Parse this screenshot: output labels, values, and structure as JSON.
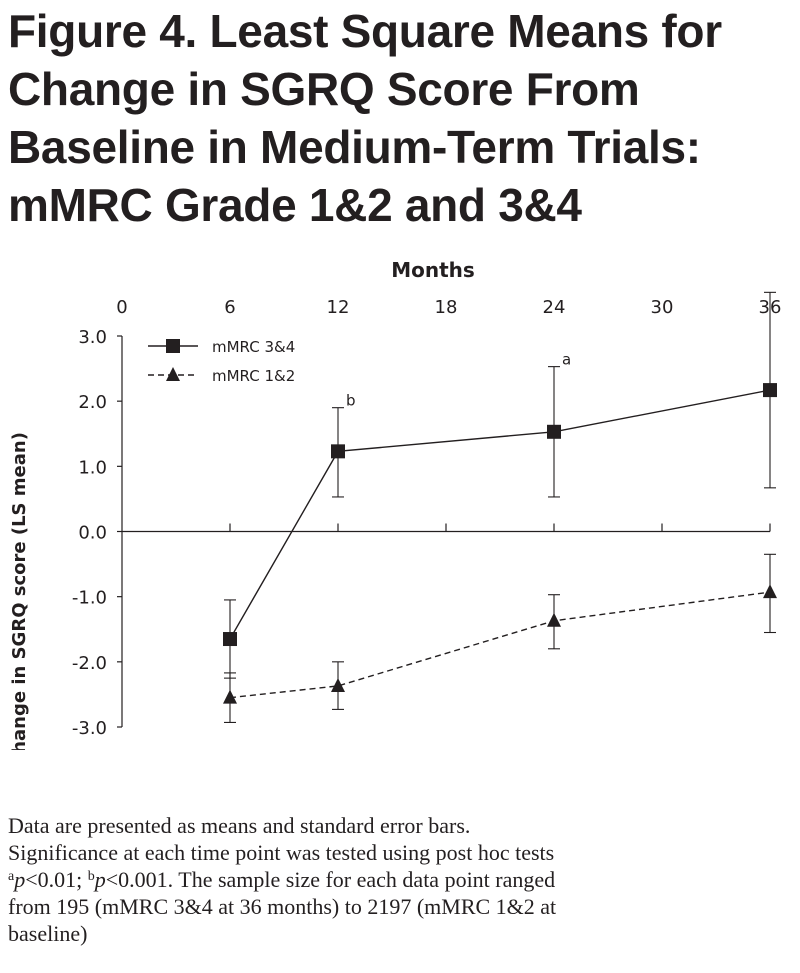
{
  "title_lines": [
    "Figure 4. Least Square Means for",
    "Change in SGRQ Score From",
    "Baseline in Medium-Term Trials:",
    "mMRC Grade 1&2 and 3&4"
  ],
  "caption": {
    "line1": "Data are presented as means and standard error bars.",
    "line2": "Significance at each time point was tested using post hoc tests",
    "sup_a": "a",
    "p_a": "p",
    "text_a": "<0.01; ",
    "sup_b": "b",
    "p_b": "p",
    "text_b": "<0.001.   The sample size for each data point ranged",
    "line4": "from 195 (mMRC 3&4 at 36 months) to 2197 (mMRC 1&2 at",
    "line5": "baseline)"
  },
  "chart_data": {
    "type": "line",
    "xlabel": "Months",
    "ylabel": "Change in SGRQ score (LS mean)",
    "x_ticks": [
      "0",
      "6",
      "12",
      "18",
      "24",
      "30",
      "36"
    ],
    "y_ticks": [
      "3.0",
      "2.0",
      "1.0",
      "0.0",
      "-1.0",
      "-2.0",
      "-3.0"
    ],
    "xlim": [
      0,
      36
    ],
    "ylim": [
      -3,
      3
    ],
    "x_axis_position": "top",
    "grid": false,
    "legend_position": "top-left",
    "series": [
      {
        "name": "mMRC 3&4",
        "marker": "square",
        "line_style": "solid",
        "points": [
          {
            "x": 6,
            "y": -1.65,
            "lo": -2.25,
            "hi": -1.05
          },
          {
            "x": 12,
            "y": 1.23,
            "lo": 0.53,
            "hi": 1.9,
            "annotation": "b"
          },
          {
            "x": 24,
            "y": 1.53,
            "lo": 0.53,
            "hi": 2.53,
            "annotation": "a"
          },
          {
            "x": 36,
            "y": 2.17,
            "lo": 0.67,
            "hi": 3.67
          }
        ]
      },
      {
        "name": "mMRC 1&2",
        "marker": "triangle",
        "line_style": "dashed",
        "points": [
          {
            "x": 6,
            "y": -2.55,
            "lo": -2.93,
            "hi": -2.17
          },
          {
            "x": 12,
            "y": -2.37,
            "lo": -2.73,
            "hi": -2.0
          },
          {
            "x": 24,
            "y": -1.37,
            "lo": -1.8,
            "hi": -0.97
          },
          {
            "x": 36,
            "y": -0.93,
            "lo": -1.55,
            "hi": -0.35
          }
        ]
      }
    ]
  }
}
